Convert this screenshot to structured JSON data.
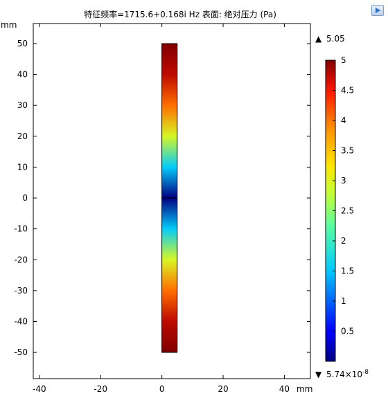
{
  "title": "特征频率=1715.6+0.168i Hz   表面: 绝对压力 (Pa)",
  "chart_data": {
    "type": "heatmap",
    "title": "特征频率=1715.6+0.168i Hz   表面: 绝对压力 (Pa)",
    "x_unit": "mm",
    "y_unit": "mm",
    "xlim": [
      -42,
      48.5
    ],
    "ylim": [
      -58.5,
      56.5
    ],
    "x_ticks": [
      -40,
      -20,
      0,
      20,
      40
    ],
    "y_ticks": [
      50,
      40,
      30,
      20,
      10,
      0,
      -10,
      -20,
      -30,
      -40,
      -50
    ],
    "x_tick_labels": [
      "-40",
      "-20",
      "0",
      "20",
      "40"
    ],
    "y_tick_labels": [
      "50",
      "40",
      "30",
      "20",
      "10",
      "0",
      "-10",
      "-20",
      "-30",
      "-40",
      "-50"
    ],
    "grid": false,
    "geometry": {
      "shape": "rectangle",
      "x_range": [
        0,
        5
      ],
      "y_range": [
        -50,
        50
      ]
    },
    "field": {
      "description": "absolute pressure varies along y; minimum at y=0, maximum at ends",
      "y_samples": [
        -50,
        -40,
        -30,
        -20,
        -10,
        0,
        10,
        20,
        30,
        40,
        50
      ],
      "values": [
        5.0,
        4.76,
        4.05,
        2.94,
        1.55,
        0.0,
        1.55,
        2.94,
        4.05,
        4.76,
        5.0
      ]
    },
    "colorbar": {
      "colormap": "rainbow",
      "min": 0,
      "max": 5,
      "ticks": [
        5,
        4.5,
        4,
        3.5,
        3,
        2.5,
        2,
        1.5,
        1,
        0.5
      ],
      "tick_labels": [
        "5",
        "4.5",
        "4",
        "3.5",
        "3",
        "2.5",
        "2",
        "1.5",
        "1",
        "0.5"
      ],
      "max_label": "5.05",
      "min_label": "5.74×10",
      "min_exponent": "-8",
      "max_marker": "▲",
      "min_marker": "▼"
    }
  }
}
